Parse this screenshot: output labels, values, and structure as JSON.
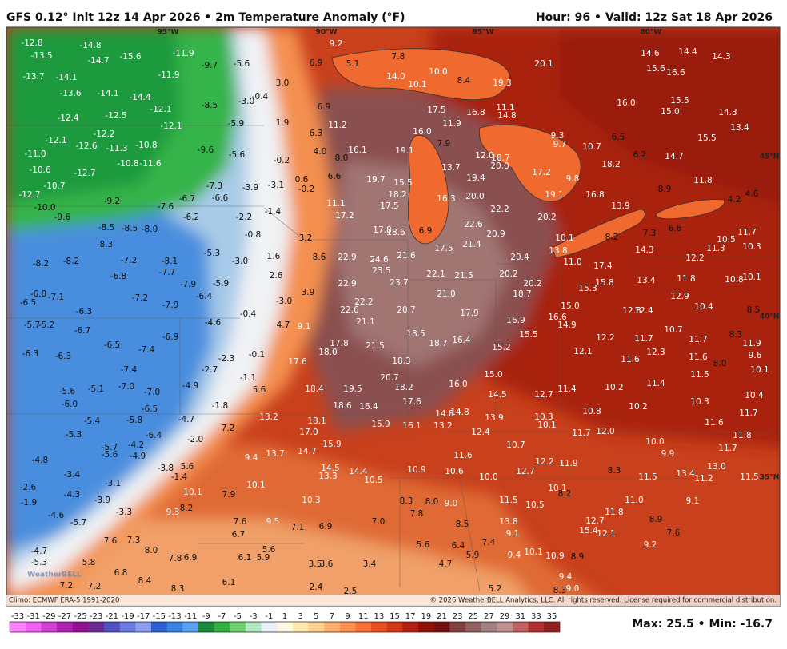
{
  "header": {
    "title": "GFS 0.12° Init 12z 14 Apr 2026 • 2m Temperature Anomaly (°F)",
    "valid": "Hour: 96 • Valid: 12z Sat 18 Apr 2026"
  },
  "graticule": [
    "95°W",
    "90°W",
    "85°W",
    "80°W",
    "45°N",
    "40°N",
    "35°N"
  ],
  "footer": {
    "climo": "Climo: ECMWF ERA-5 1991-2020",
    "copyright": "© 2026 WeatherBELL Analytics, LLC. All rights reserved. License required for commercial distribution.",
    "watermark": "WeatherBELL"
  },
  "legend": {
    "ticks": [
      -33,
      -31,
      -29,
      -27,
      -25,
      -23,
      -21,
      -19,
      -17,
      -15,
      -13,
      -11,
      -9,
      -7,
      -5,
      -3,
      -1,
      1,
      3,
      5,
      7,
      9,
      11,
      13,
      15,
      17,
      19,
      21,
      23,
      25,
      27,
      29,
      31,
      33,
      35
    ],
    "colors": [
      "#ff80ff",
      "#f060f0",
      "#d040d0",
      "#b020b0",
      "#901090",
      "#6a2a90",
      "#5050c0",
      "#6a7ae0",
      "#8a9ef0",
      "#2a60d0",
      "#3a80e0",
      "#5aa0f0",
      "#1a8a3a",
      "#30b040",
      "#70d070",
      "#b0e8c0",
      "#e8f0f8",
      "#fff8e0",
      "#ffe8b0",
      "#ffd090",
      "#ffb070",
      "#ff9050",
      "#f87038",
      "#e85020",
      "#d03818",
      "#b02010",
      "#901008",
      "#701010",
      "#804040",
      "#906060",
      "#a08080",
      "#c09090",
      "#c06060",
      "#b03030",
      "#902020"
    ]
  },
  "stats": "Max: 25.5 • Min: -16.7",
  "map_labels": [
    "-12.8",
    "-13.5",
    "-14.8",
    "-14.7",
    "-15.6",
    "-11.9",
    "-9.7",
    "-5.6",
    "-13.7",
    "-14.1",
    "-13.6",
    "-14.1",
    "-14.4",
    "-11.9",
    "-12.1",
    "-8.5",
    "-12.4",
    "-12.5",
    "-12.1",
    "-5.9",
    "-3.0",
    "-0.4",
    "3.0",
    "1.9",
    "-12.1",
    "-12.6",
    "-12.2",
    "-11.3",
    "-10.8",
    "-9.6",
    "-5.6",
    "-11.0",
    "-10.6",
    "-12.7",
    "-10.8",
    "-11.6",
    "-0.2",
    "-10.7",
    "-7.3",
    "-3.9",
    "-3.1",
    "-12.7",
    "-10.0",
    "-9.6",
    "-9.2",
    "-7.6",
    "-6.7",
    "-6.6",
    "-8.5",
    "-8.5",
    "-8.0",
    "-6.2",
    "-2.2",
    "-1.4",
    "-0.8",
    "-8.3",
    "-5.3",
    "-3.0",
    "1.6",
    "-8.2",
    "-8.2",
    "-7.2",
    "-8.1",
    "-7.7",
    "-6.8",
    "2.6",
    "-7.9",
    "-5.9",
    "-6.8",
    "-6.5",
    "-7.1",
    "-7.2",
    "-7.9",
    "-6.4",
    "-6.3",
    "-0.4",
    "-5.7",
    "-5.2",
    "-6.7",
    "-4.6",
    "-6.9",
    "-6.5",
    "-7.4",
    "-6.3",
    "-6.3",
    "-2.3",
    "-0.1",
    "-7.4",
    "-2.7",
    "-1.1",
    "-5.6",
    "-5.1",
    "-7.0",
    "-7.0",
    "-4.9",
    "-6.0",
    "-6.5",
    "-1.8",
    "-5.4",
    "-5.8",
    "-4.7",
    "-5.3",
    "-6.4",
    "-2.0",
    "-5.7",
    "-4.2",
    "-5.6",
    "-4.9",
    "-4.8",
    "-3.8",
    "-3.4",
    "-3.1",
    "-2.6",
    "-4.3",
    "-3.9",
    "-1.9",
    "-4.6",
    "-5.7",
    "-3.3",
    "9.2",
    "5.1",
    "6.9",
    "7.8",
    "14.0",
    "10.1",
    "10.0",
    "8.4",
    "19.3",
    "20.1",
    "14.6",
    "14.4",
    "14.3",
    "15.6",
    "16.6",
    "16.0",
    "15.5",
    "15.0",
    "14.3",
    "13.4",
    "15.5",
    "6.9",
    "11.2",
    "6.3",
    "4.0",
    "8.0",
    "16.1",
    "19.1",
    "17.5",
    "11.9",
    "16.8",
    "11.1",
    "14.8",
    "16.0",
    "7.9",
    "12.0",
    "18.7",
    "20.0",
    "13.7",
    "19.7",
    "15.5",
    "18.2",
    "19.4",
    "17.2",
    "9.3",
    "9.7",
    "10.7",
    "6.5",
    "18.2",
    "6.2",
    "14.7",
    "9.8",
    "8.9",
    "11.8",
    "4.2",
    "4.6",
    "6.6",
    "0.6",
    "-0.2",
    "11.1",
    "17.2",
    "17.5",
    "16.3",
    "20.0",
    "22.2",
    "19.1",
    "16.8",
    "13.9",
    "20.2",
    "22.6",
    "17.8",
    "18.6",
    "6.9",
    "20.9",
    "3.2",
    "10.1",
    "8.2",
    "7.3",
    "6.6",
    "10.5",
    "11.7",
    "21.4",
    "17.5",
    "21.6",
    "13.8",
    "14.3",
    "11.3",
    "10.3",
    "8.6",
    "22.9",
    "24.6",
    "23.5",
    "20.4",
    "12.2",
    "11.0",
    "17.4",
    "22.1",
    "21.5",
    "20.2",
    "11.8",
    "10.8",
    "10.1",
    "22.9",
    "23.7",
    "20.2",
    "15.8",
    "13.4",
    "15.3",
    "3.9",
    "21.0",
    "18.7",
    "12.9",
    "-3.0",
    "22.2",
    "15.0",
    "22.6",
    "20.7",
    "17.9",
    "12.8",
    "12.4",
    "10.4",
    "8.5",
    "16.6",
    "16.9",
    "4.7",
    "9.1",
    "21.1",
    "14.9",
    "10.7",
    "8.3",
    "18.5",
    "15.5",
    "17.8",
    "21.5",
    "18.7",
    "16.4",
    "12.2",
    "11.7",
    "18.0",
    "15.2",
    "12.1",
    "12.3",
    "11.7",
    "11.9",
    "9.6",
    "17.6",
    "18.3",
    "11.6",
    "11.6",
    "8.0",
    "20.7",
    "15.0",
    "11.5",
    "10.1",
    "5.6",
    "18.4",
    "19.5",
    "18.2",
    "16.0",
    "10.2",
    "11.4",
    "14.5",
    "12.7",
    "11.4",
    "10.3",
    "10.4",
    "17.6",
    "18.6",
    "16.4",
    "14.8",
    "14.8",
    "13.9",
    "10.3",
    "10.8",
    "10.2",
    "13.2",
    "18.1",
    "15.9",
    "16.1",
    "13.2",
    "10.1",
    "11.6",
    "11.7",
    "7.2",
    "17.0",
    "12.4",
    "11.7",
    "12.0",
    "11.8",
    "15.9",
    "10.7",
    "10.0",
    "11.7",
    "9.4",
    "13.7",
    "14.7",
    "11.6",
    "9.9",
    "12.2",
    "11.9",
    "13.0",
    "5.6",
    "14.5",
    "10.9",
    "10.6",
    "12.7",
    "8.3",
    "-1.4",
    "13.3",
    "14.4",
    "10.0",
    "11.5",
    "13.4",
    "11.2",
    "11.5",
    "10.5",
    "10.1",
    "7.9",
    "10.1",
    "10.1",
    "10.3",
    "8.3",
    "8.0",
    "9.0",
    "11.5",
    "10.5",
    "8.2",
    "11.0",
    "9.1",
    "9.3",
    "8.2",
    "11.8",
    "7.8",
    "7.6",
    "9.5",
    "7.1",
    "6.9",
    "7.0",
    "8.5",
    "13.8",
    "12.7",
    "8.9",
    "6.7",
    "9.1",
    "15.4",
    "12.1",
    "7.6",
    "7.6",
    "7.3",
    "7.4",
    "5.6",
    "6.4",
    "9.2",
    "8.0",
    "5.6",
    "-4.7",
    "7.8",
    "6.9",
    "6.1",
    "5.9",
    "5.9",
    "9.4",
    "10.1",
    "10.9",
    "8.9",
    "-5.3",
    "5.8",
    "3.5",
    "3.6",
    "3.4",
    "4.7",
    "6.8",
    "9.4",
    "8.4",
    "6.1",
    "7.2",
    "7.2",
    "8.3",
    "2.4",
    "2.5",
    "5.2",
    "8.3",
    "9.0"
  ]
}
